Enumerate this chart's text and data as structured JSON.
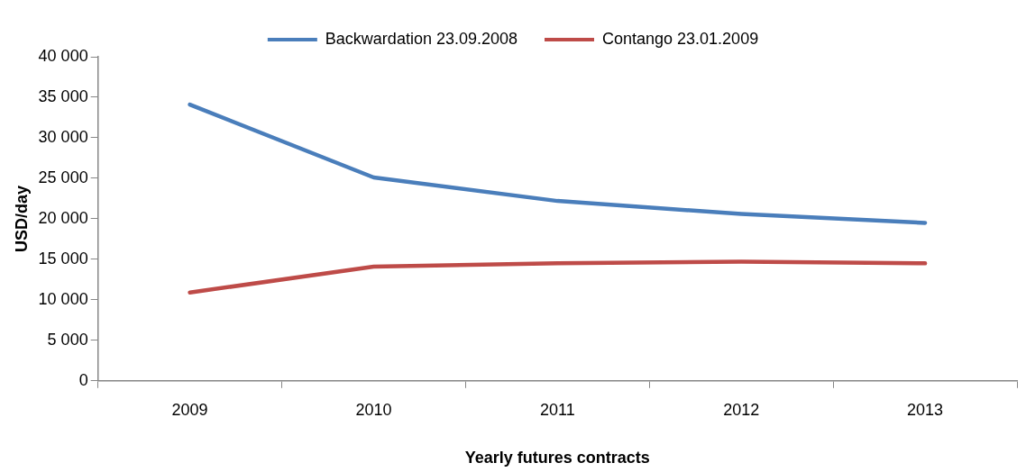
{
  "chart_data": {
    "type": "line",
    "xlabel": "Yearly futures contracts",
    "ylabel": "USD/day",
    "categories": [
      "2009",
      "2010",
      "2011",
      "2012",
      "2013"
    ],
    "series": [
      {
        "name": "Backwardation 23.09.2008",
        "color": "#4a7ebb",
        "values": [
          34100,
          25100,
          22200,
          20600,
          19500
        ]
      },
      {
        "name": "Contango 23.01.2009",
        "color": "#be4b48",
        "values": [
          10900,
          14100,
          14500,
          14700,
          14500
        ]
      }
    ],
    "ylim": [
      0,
      40000
    ],
    "yticks": [
      {
        "value": 0,
        "label": "0"
      },
      {
        "value": 5000,
        "label": "5 000"
      },
      {
        "value": 10000,
        "label": "10 000"
      },
      {
        "value": 15000,
        "label": "15 000"
      },
      {
        "value": 20000,
        "label": "20 000"
      },
      {
        "value": 25000,
        "label": "25 000"
      },
      {
        "value": 30000,
        "label": "30 000"
      },
      {
        "value": 35000,
        "label": "35 000"
      },
      {
        "value": 40000,
        "label": "40 000"
      }
    ],
    "grid": false,
    "legend": "top",
    "marker": "none",
    "line_style": "solid"
  }
}
